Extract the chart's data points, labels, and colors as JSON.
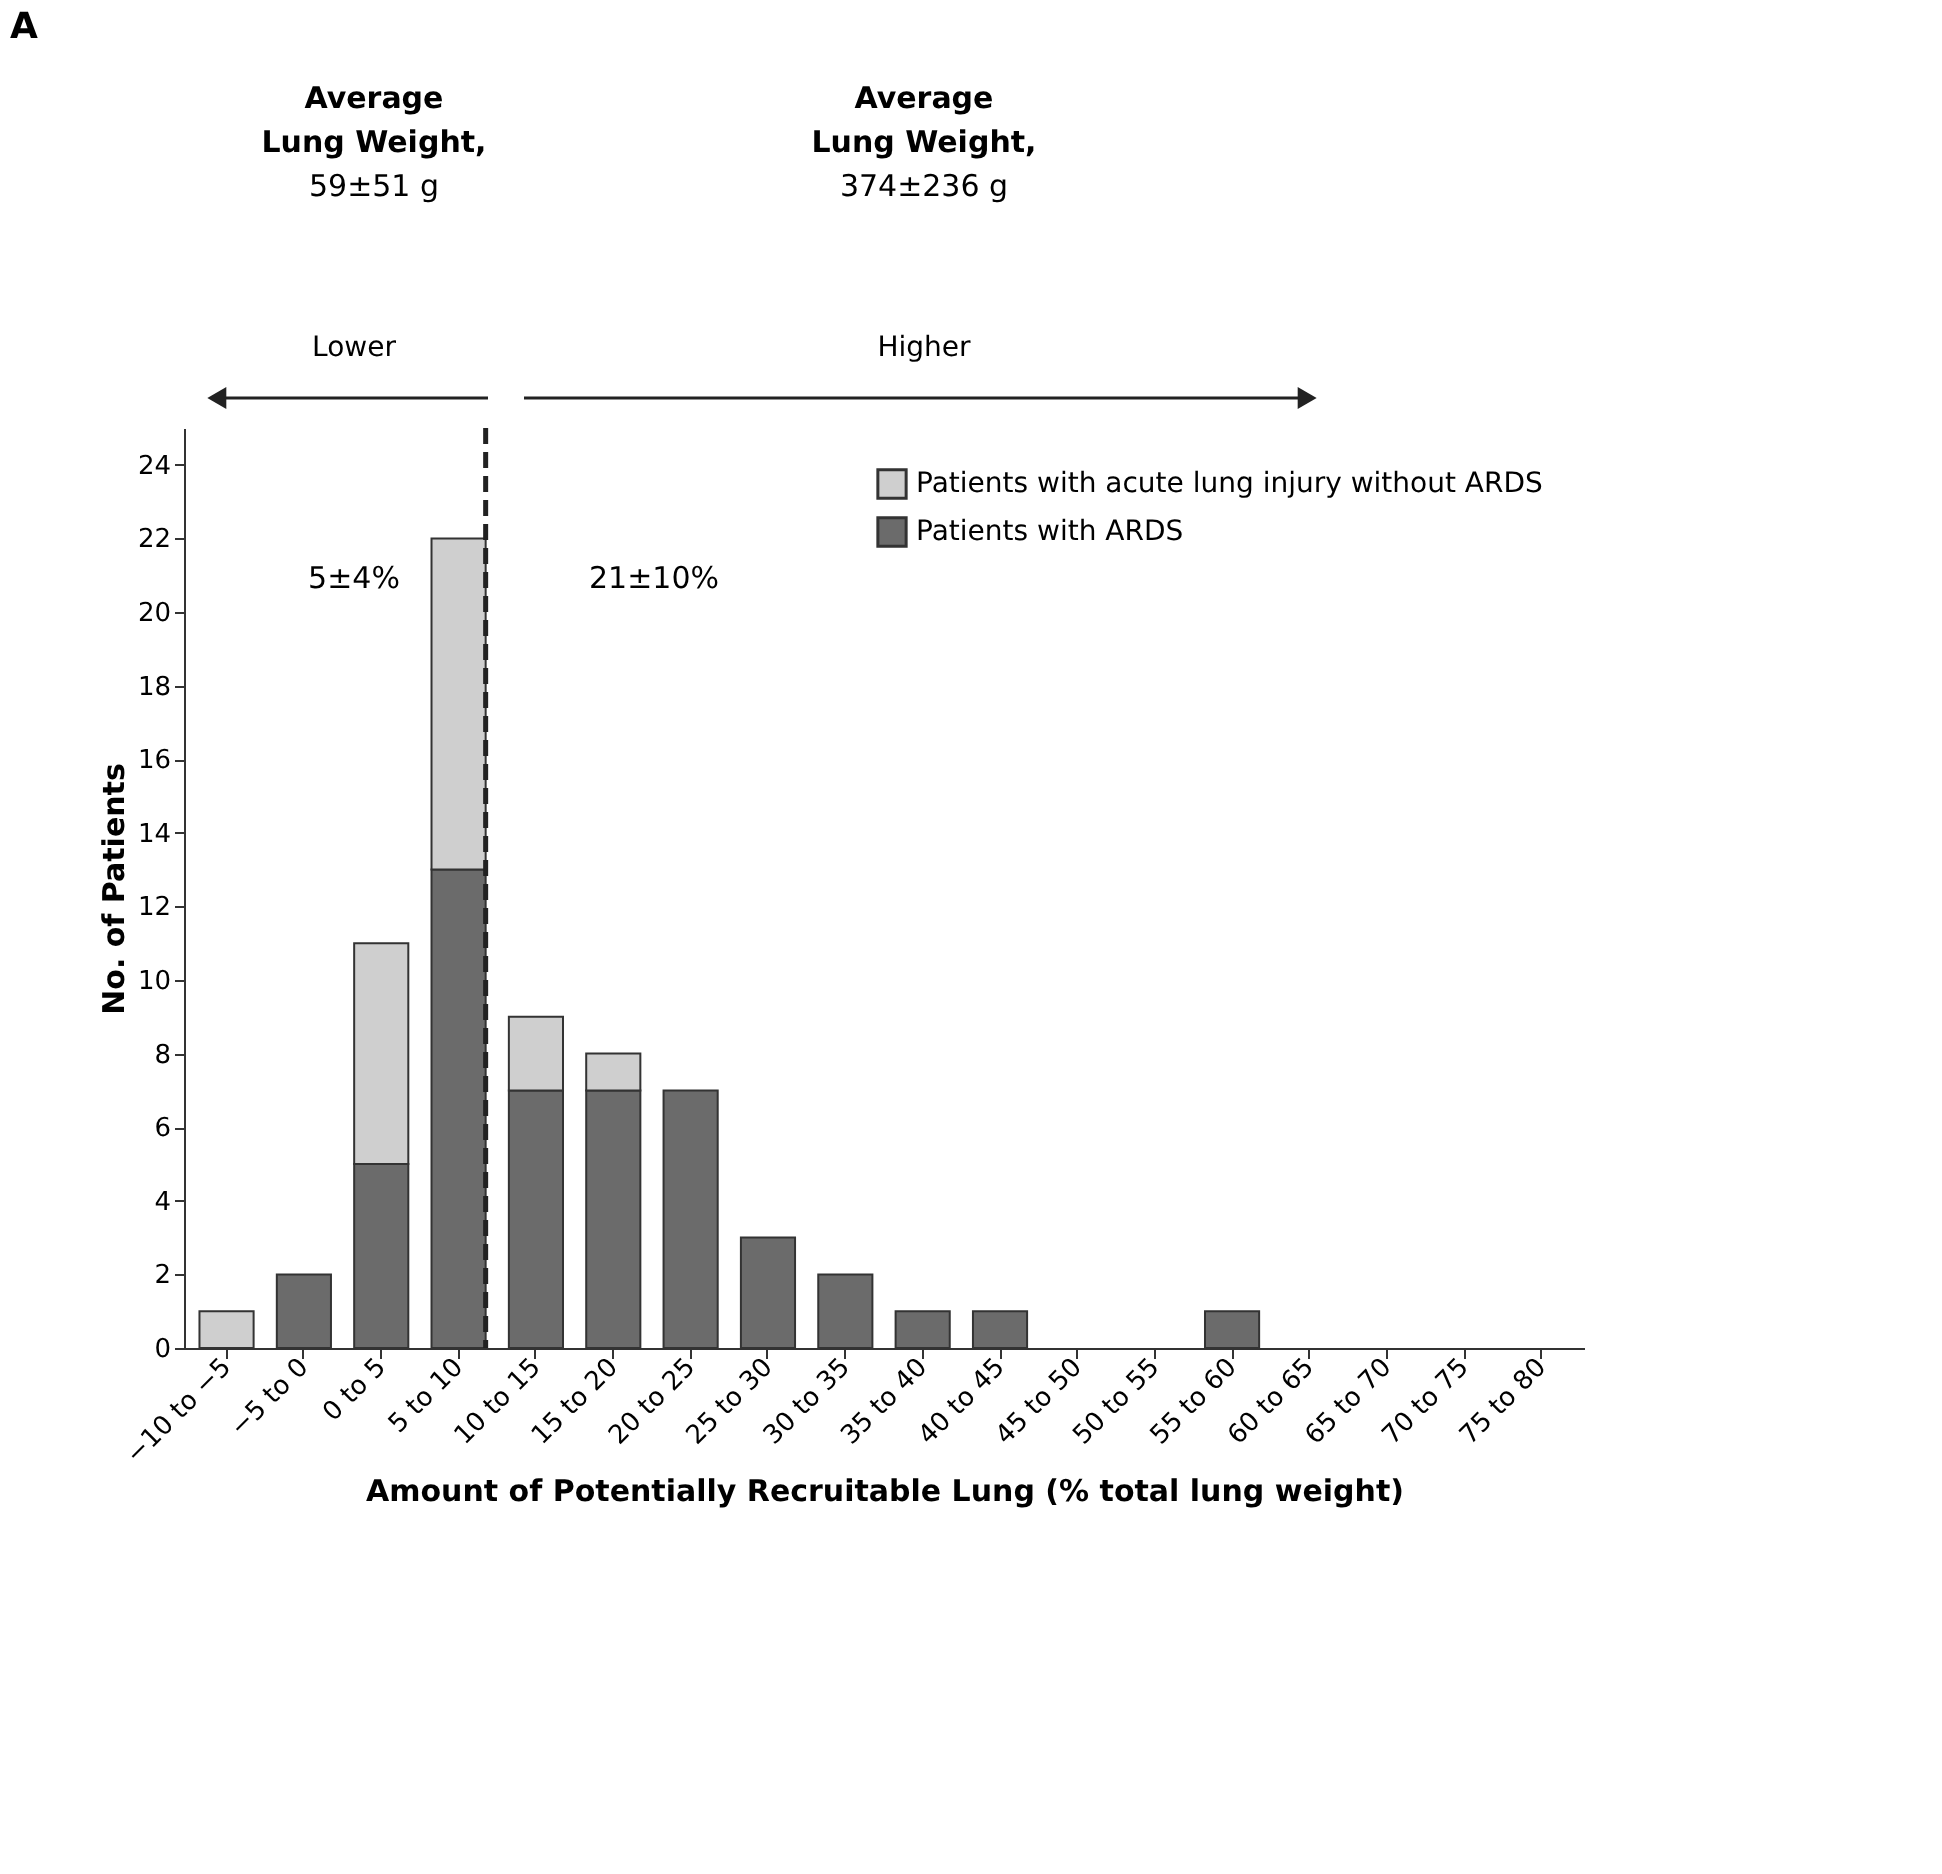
{
  "chart_data": {
    "type": "bar",
    "stacked": true,
    "categories": [
      "−10 to −5",
      "−5 to 0",
      "0 to 5",
      "5 to 10",
      "10 to 15",
      "15 to 20",
      "20 to 25",
      "25 to 30",
      "30 to 35",
      "35 to 40",
      "40 to 45",
      "45 to 50",
      "50 to 55",
      "55 to 60",
      "60 to 65",
      "65 to 70",
      "70 to 75",
      "75 to 80"
    ],
    "series": [
      {
        "name": "Patients with ARDS",
        "color": "#6b6b6b",
        "values": [
          0,
          2,
          5,
          13,
          7,
          7,
          7,
          3,
          2,
          1,
          1,
          0,
          0,
          1,
          0,
          0,
          0,
          0
        ]
      },
      {
        "name": "Patients with acute lung injury without ARDS",
        "color": "#cfcfcf",
        "values": [
          1,
          0,
          6,
          9,
          2,
          1,
          0,
          0,
          0,
          0,
          0,
          0,
          0,
          0,
          0,
          0,
          0,
          0
        ]
      }
    ],
    "xlabel": "Amount of Potentially Recruitable Lung (% total lung weight)",
    "ylabel": "No. of Patients",
    "ylim": [
      0,
      25
    ],
    "yticks": [
      0,
      2,
      4,
      6,
      8,
      10,
      12,
      14,
      16,
      18,
      20,
      22,
      24
    ],
    "ref_lines": [
      {
        "axis": "x",
        "value": "5 to 10",
        "line_style": "dashed",
        "color": "#222222"
      }
    ],
    "annotations": [
      "A",
      "Average Lung Weight, 59±51 g",
      "Average Lung Weight, 374±236 g",
      "Lower",
      "Higher",
      "5±4%",
      "21±10%"
    ],
    "legend": "top right",
    "grid": false
  }
}
